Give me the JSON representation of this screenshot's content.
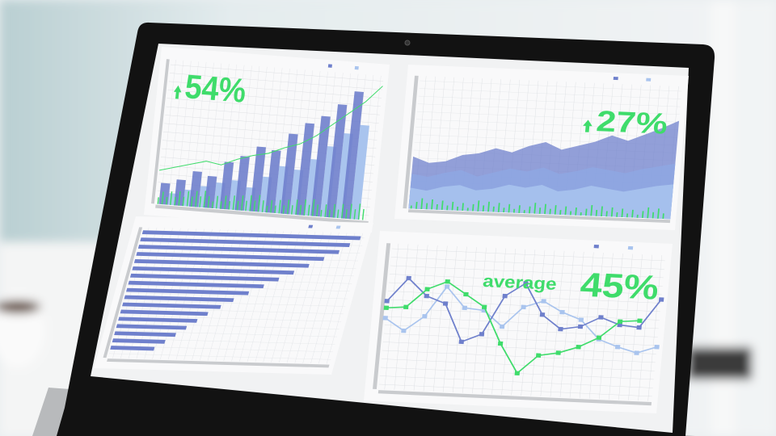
{
  "colors": {
    "green": "#3fdc6b",
    "dark_blue": "#6f80cc",
    "light_blue": "#a9c4ee",
    "grid": "#d8dadd",
    "bezel": "#141414"
  },
  "screen": {
    "top_left": {
      "headline": "54%",
      "icon": "arrow-up-icon",
      "dark_bars": [
        18,
        22,
        30,
        27,
        40,
        46,
        55,
        53,
        68,
        78,
        85,
        96,
        108
      ],
      "light_bars": [
        10,
        14,
        18,
        22,
        25,
        20,
        30,
        40,
        38,
        48,
        60,
        72,
        80
      ],
      "green_line": [
        40,
        45,
        50,
        55,
        52,
        60,
        66,
        70,
        78,
        84,
        95,
        110,
        125,
        140,
        160
      ]
    },
    "top_right": {
      "headline": "27%",
      "icon": "arrow-up-icon",
      "layer_back": [
        45,
        40,
        42,
        48,
        50,
        55,
        52,
        58,
        62,
        56,
        60,
        64,
        70,
        66,
        72,
        78,
        85
      ],
      "layer_mid": [
        30,
        28,
        32,
        35,
        30,
        34,
        38,
        36,
        40,
        35,
        38,
        42,
        40,
        38,
        42,
        45,
        48
      ],
      "layer_front": [
        18,
        16,
        20,
        22,
        18,
        20,
        24,
        22,
        25,
        20,
        22,
        26,
        24,
        22,
        25,
        28,
        30
      ]
    },
    "bottom_left": {
      "bars": [
        100,
        96,
        92,
        86,
        80,
        74,
        68,
        62,
        56,
        50,
        45,
        40,
        36,
        32,
        28,
        24,
        20
      ]
    },
    "bottom_right": {
      "label": "average",
      "headline": "45%",
      "dark_line": [
        52,
        66,
        56,
        52,
        30,
        35,
        58,
        66,
        48,
        40,
        42,
        48,
        44,
        43,
        60
      ],
      "light_line": [
        42,
        35,
        44,
        62,
        50,
        49,
        40,
        52,
        56,
        50,
        46,
        35,
        31,
        28,
        32
      ],
      "green_line": [
        48,
        49,
        60,
        65,
        58,
        51,
        30,
        13,
        24,
        26,
        30,
        36,
        46,
        47
      ]
    }
  }
}
